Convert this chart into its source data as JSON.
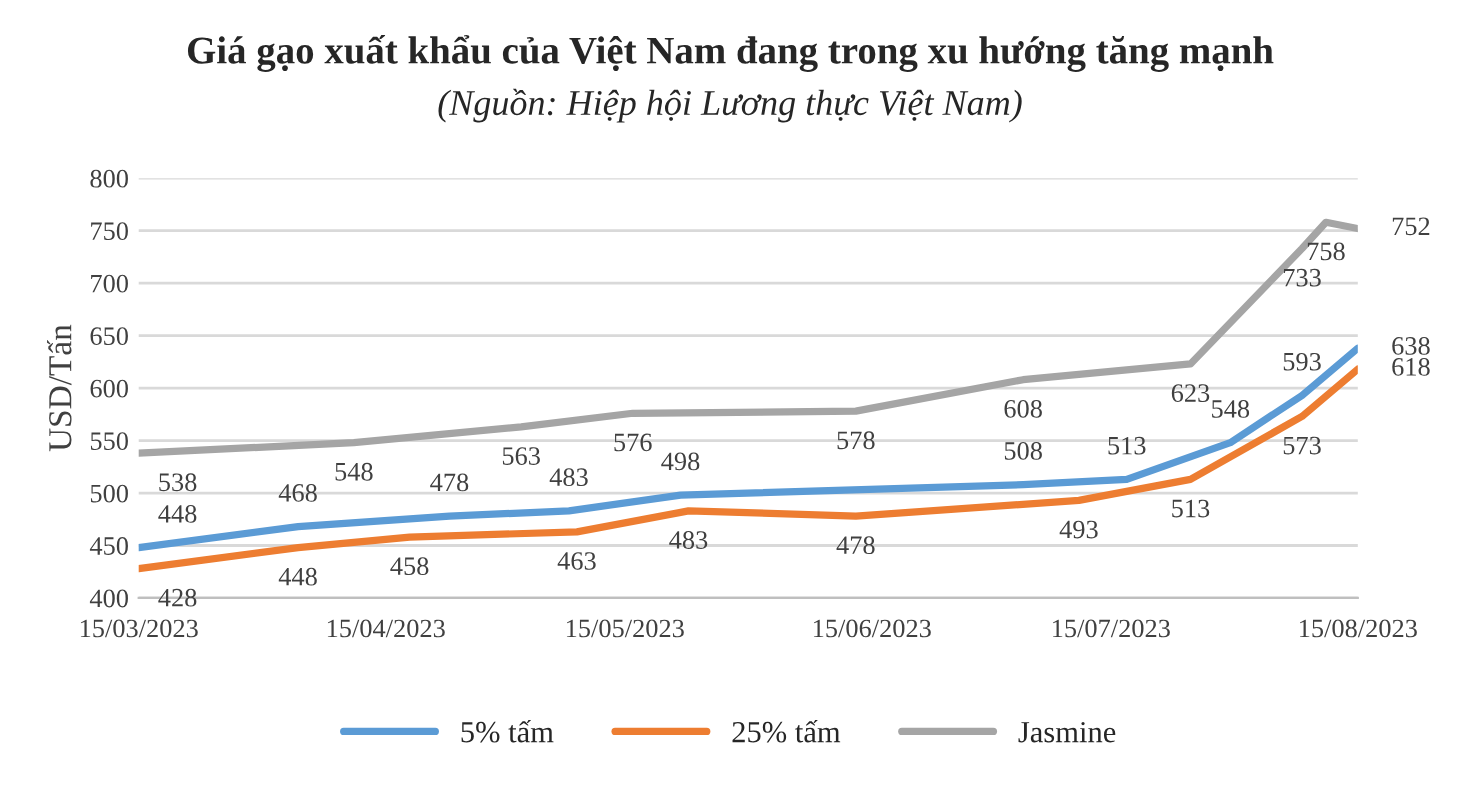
{
  "chart_data": {
    "type": "line",
    "title": "Giá gạo xuất khẩu của Việt Nam đang trong xu hướng tăng mạnh",
    "subtitle": "(Nguồn: Hiệp hội Lương thực Việt Nam)",
    "ylabel": "USD/Tấn",
    "series": [
      {
        "name": "5% tấm",
        "color": "#5b9bd5",
        "x": [
          "2023-03-15",
          "2023-04-04",
          "2023-04-23",
          "2023-05-08",
          "2023-05-22",
          "2023-07-04",
          "2023-07-17",
          "2023-07-30",
          "2023-08-08",
          "2023-08-15"
        ],
        "values": [
          448,
          468,
          478,
          483,
          498,
          508,
          513,
          548,
          593,
          638
        ]
      },
      {
        "name": "25% tấm",
        "color": "#ed7d31",
        "x": [
          "2023-03-15",
          "2023-04-04",
          "2023-04-18",
          "2023-05-09",
          "2023-05-23",
          "2023-06-13",
          "2023-07-11",
          "2023-07-25",
          "2023-08-08",
          "2023-08-15"
        ],
        "values": [
          428,
          448,
          458,
          463,
          483,
          478,
          493,
          513,
          573,
          618
        ]
      },
      {
        "name": "Jasmine",
        "color": "#a5a5a5",
        "x": [
          "2023-03-15",
          "2023-04-11",
          "2023-05-02",
          "2023-05-16",
          "2023-06-13",
          "2023-07-04",
          "2023-07-25",
          "2023-08-08",
          "2023-08-11",
          "2023-08-15"
        ],
        "values": [
          538,
          548,
          563,
          576,
          578,
          608,
          623,
          733,
          758,
          752
        ]
      }
    ],
    "xlim": [
      "2023-03-15",
      "2023-08-15"
    ],
    "xticks": [
      {
        "value": "2023-03-15",
        "label": "15/03/2023"
      },
      {
        "value": "2023-04-15",
        "label": "15/04/2023"
      },
      {
        "value": "2023-05-15",
        "label": "15/05/2023"
      },
      {
        "value": "2023-06-15",
        "label": "15/06/2023"
      },
      {
        "value": "2023-07-15",
        "label": "15/07/2023"
      },
      {
        "value": "2023-08-15",
        "label": "15/08/2023"
      }
    ],
    "ylim": [
      400,
      800
    ],
    "yticks": [
      400,
      450,
      500,
      550,
      600,
      650,
      700,
      750,
      800
    ],
    "grid": "y",
    "legend": "bottom",
    "marker": "none",
    "line_style": "solid",
    "data_labels": true
  }
}
